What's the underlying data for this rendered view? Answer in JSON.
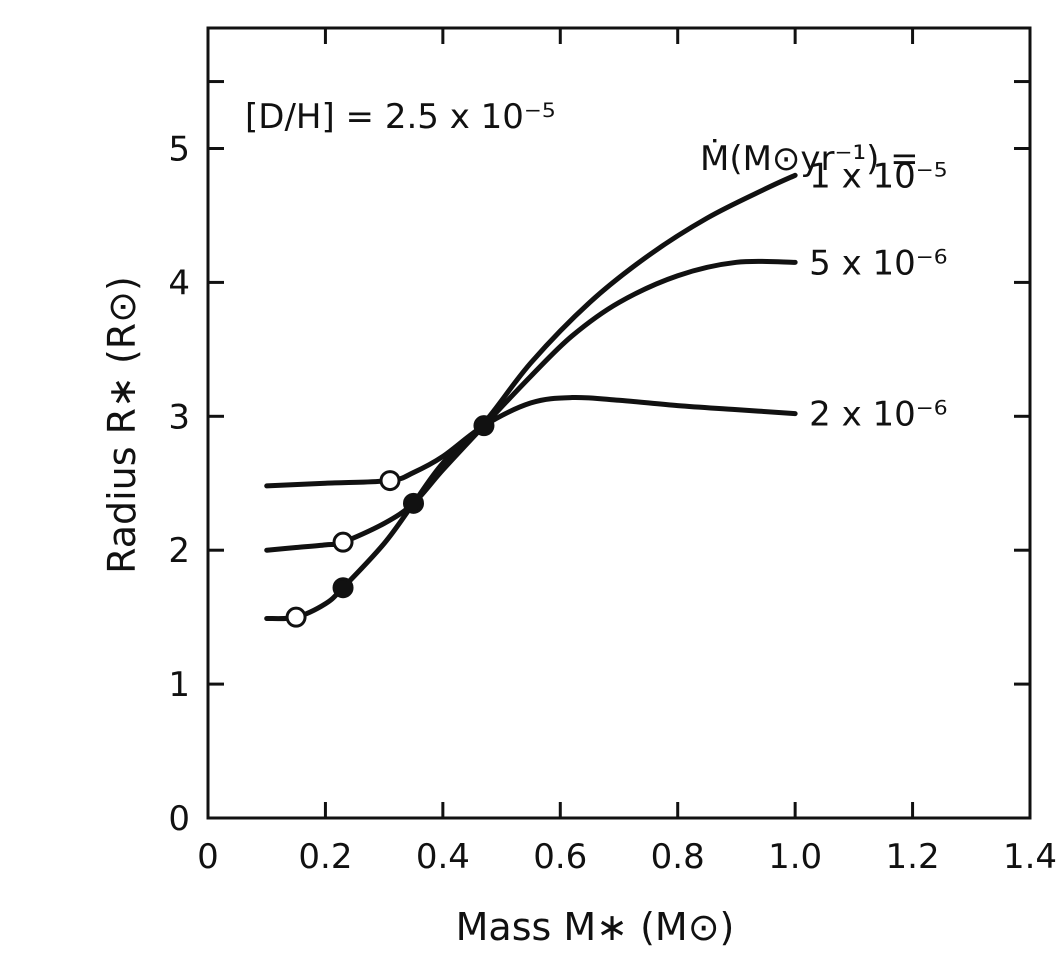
{
  "chart_data": {
    "type": "line",
    "xlabel": "Mass M∗ (M⊙)",
    "ylabel": "Radius R∗ (R⊙)",
    "xlim": [
      0,
      1.4
    ],
    "ylim": [
      0,
      5.9
    ],
    "x_ticks": [
      0,
      0.2,
      0.4,
      0.6,
      0.8,
      1.0,
      1.2,
      1.4
    ],
    "x_tick_labels": [
      "0",
      "0.2",
      "0.4",
      "0.6",
      "0.8",
      "1.0",
      "1.2",
      "1.4"
    ],
    "y_ticks": [
      0,
      1,
      2,
      3,
      4,
      5
    ],
    "y_tick_labels": [
      "0",
      "1",
      "2",
      "3",
      "4",
      "5"
    ],
    "annotation": "[D/H] = 2.5 x 10⁻⁵",
    "legend_title": "Ṁ(M⊙yr⁻¹) =",
    "series": [
      {
        "name": "1 x 10⁻⁵",
        "x": [
          0.1,
          0.15,
          0.2,
          0.23,
          0.3,
          0.35,
          0.4,
          0.47,
          0.55,
          0.65,
          0.75,
          0.85,
          0.95,
          1.0
        ],
        "y": [
          1.49,
          1.5,
          1.6,
          1.72,
          2.05,
          2.35,
          2.65,
          2.95,
          3.4,
          3.85,
          4.2,
          4.48,
          4.7,
          4.8
        ]
      },
      {
        "name": "5 x 10⁻⁶",
        "x": [
          0.1,
          0.15,
          0.2,
          0.23,
          0.3,
          0.35,
          0.4,
          0.47,
          0.55,
          0.62,
          0.7,
          0.8,
          0.9,
          1.0
        ],
        "y": [
          2.0,
          2.02,
          2.04,
          2.06,
          2.2,
          2.35,
          2.6,
          2.93,
          3.3,
          3.6,
          3.85,
          4.05,
          4.15,
          4.15
        ]
      },
      {
        "name": "2 x 10⁻⁶",
        "x": [
          0.1,
          0.2,
          0.31,
          0.35,
          0.4,
          0.47,
          0.55,
          0.62,
          0.7,
          0.8,
          0.9,
          1.0
        ],
        "y": [
          2.48,
          2.5,
          2.52,
          2.58,
          2.7,
          2.93,
          3.1,
          3.14,
          3.12,
          3.08,
          3.05,
          3.02
        ]
      }
    ],
    "markers": [
      {
        "x": 0.15,
        "y": 1.5,
        "filled": false
      },
      {
        "x": 0.23,
        "y": 2.06,
        "filled": false
      },
      {
        "x": 0.31,
        "y": 2.52,
        "filled": false
      },
      {
        "x": 0.23,
        "y": 1.72,
        "filled": true
      },
      {
        "x": 0.35,
        "y": 2.35,
        "filled": true
      },
      {
        "x": 0.47,
        "y": 2.93,
        "filled": true
      }
    ],
    "grid": false
  }
}
